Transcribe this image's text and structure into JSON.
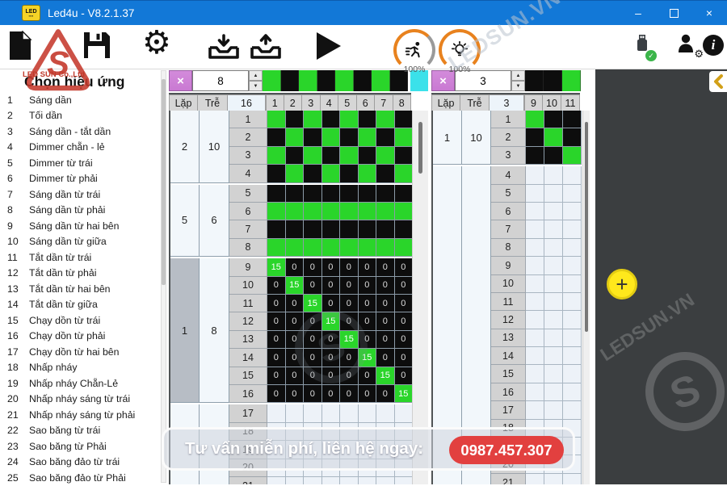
{
  "window": {
    "title": "Led4u - V8.2.1.37",
    "icon_line1": "LED",
    "icon_line2": "▪▪▪▪",
    "minimize": "–",
    "close": "×"
  },
  "toolbar": {
    "speed_label": "100%",
    "brightness_label": "100%"
  },
  "sidebar": {
    "title": "Chọn hiệu ứng",
    "items": [
      {
        "num": "1",
        "label": "Sáng dần"
      },
      {
        "num": "2",
        "label": "Tối dần"
      },
      {
        "num": "3",
        "label": "Sáng dần - tắt dần"
      },
      {
        "num": "4",
        "label": "Dimmer chẵn - lẻ"
      },
      {
        "num": "5",
        "label": "Dimmer từ trái"
      },
      {
        "num": "6",
        "label": "Dimmer từ phải"
      },
      {
        "num": "7",
        "label": "Sáng dần từ trái"
      },
      {
        "num": "8",
        "label": "Sáng dần từ phải"
      },
      {
        "num": "9",
        "label": "Sáng dần từ hai bên"
      },
      {
        "num": "10",
        "label": "Sáng dần từ giữa"
      },
      {
        "num": "11",
        "label": "Tắt dần từ trái"
      },
      {
        "num": "12",
        "label": "Tắt dần từ phải"
      },
      {
        "num": "13",
        "label": "Tắt dần từ hai bên"
      },
      {
        "num": "14",
        "label": "Tắt dần từ giữa"
      },
      {
        "num": "15",
        "label": "Chạy dồn từ trái"
      },
      {
        "num": "16",
        "label": "Chạy dồn từ phải"
      },
      {
        "num": "17",
        "label": "Chạy dồn từ hai bên"
      },
      {
        "num": "18",
        "label": "Nhấp nháy"
      },
      {
        "num": "19",
        "label": "Nhấp nháy Chẵn-Lẻ"
      },
      {
        "num": "20",
        "label": "Nhấp nháy sáng từ trái"
      },
      {
        "num": "21",
        "label": "Nhấp nháy sáng từ phải"
      },
      {
        "num": "22",
        "label": "Sao băng từ trái"
      },
      {
        "num": "23",
        "label": "Sao băng từ Phải"
      },
      {
        "num": "24",
        "label": "Sao băng đảo từ trái"
      },
      {
        "num": "25",
        "label": "Sao băng đảo từ Phải"
      }
    ]
  },
  "grids": {
    "left": {
      "clear": "×",
      "value": "8",
      "headers": {
        "lap": "Lặp",
        "tre": "Trễ",
        "count": "16"
      },
      "columns": [
        "1",
        "2",
        "3",
        "4",
        "5",
        "6",
        "7",
        "8"
      ],
      "top_colors": [
        "g",
        "k",
        "g",
        "k",
        "g",
        "k",
        "g",
        "k"
      ],
      "has_corner": true,
      "sections": [
        {
          "lap": "2",
          "tre": "10",
          "rows": [
            [
              "g",
              "k",
              "g",
              "k",
              "g",
              "k",
              "g",
              "k"
            ],
            [
              "k",
              "g",
              "k",
              "g",
              "k",
              "g",
              "k",
              "g"
            ],
            [
              "g",
              "k",
              "g",
              "k",
              "g",
              "k",
              "g",
              "k"
            ],
            [
              "k",
              "g",
              "k",
              "g",
              "k",
              "g",
              "k",
              "g"
            ]
          ]
        },
        {
          "lap": "5",
          "tre": "6",
          "rows": [
            [
              "k",
              "k",
              "k",
              "k",
              "k",
              "k",
              "k",
              "k"
            ],
            [
              "g",
              "g",
              "g",
              "g",
              "g",
              "g",
              "g",
              "g"
            ],
            [
              "k",
              "k",
              "k",
              "k",
              "k",
              "k",
              "k",
              "k"
            ],
            [
              "g",
              "g",
              "g",
              "g",
              "g",
              "g",
              "g",
              "g"
            ]
          ]
        },
        {
          "lap": "1",
          "tre": "8",
          "selected": true,
          "rows": [
            [
              "g:15",
              "k:0",
              "k:0",
              "k:0",
              "k:0",
              "k:0",
              "k:0",
              "k:0"
            ],
            [
              "k:0",
              "g:15",
              "k:0",
              "k:0",
              "k:0",
              "k:0",
              "k:0",
              "k:0"
            ],
            [
              "k:0",
              "k:0",
              "g:15",
              "k:0",
              "k:0",
              "k:0",
              "k:0",
              "k:0"
            ],
            [
              "k:0",
              "k:0",
              "k:0",
              "g:15",
              "k:0",
              "k:0",
              "k:0",
              "k:0"
            ],
            [
              "k:0",
              "k:0",
              "k:0",
              "k:0",
              "g:15",
              "k:0",
              "k:0",
              "k:0"
            ],
            [
              "k:0",
              "k:0",
              "k:0",
              "k:0",
              "k:0",
              "g:15",
              "k:0",
              "k:0"
            ],
            [
              "k:0",
              "k:0",
              "k:0",
              "k:0",
              "k:0",
              "k:0",
              "g:15",
              "k:0"
            ],
            [
              "k:0",
              "k:0",
              "k:0",
              "k:0",
              "k:0",
              "k:0",
              "k:0",
              "g:15"
            ]
          ]
        },
        {
          "lap": "",
          "tre": "",
          "rows": [
            [
              "",
              "",
              "",
              "",
              "",
              "",
              "",
              ""
            ],
            [
              "",
              "",
              "",
              "",
              "",
              "",
              "",
              ""
            ],
            [
              "",
              "",
              "",
              "",
              "",
              "",
              "",
              ""
            ],
            [
              "",
              "",
              "",
              "",
              "",
              "",
              "",
              ""
            ],
            [
              "",
              "",
              "",
              "",
              "",
              "",
              "",
              ""
            ]
          ]
        }
      ]
    },
    "right": {
      "clear": "×",
      "value": "3",
      "headers": {
        "lap": "Lặp",
        "tre": "Trễ",
        "count": "3"
      },
      "columns": [
        "9",
        "10",
        "11"
      ],
      "top_colors": [
        "k",
        "k",
        "g"
      ],
      "has_corner": false,
      "sections": [
        {
          "lap": "1",
          "tre": "10",
          "rows": [
            [
              "g",
              "k",
              "k"
            ],
            [
              "k",
              "g",
              "k"
            ],
            [
              "k",
              "k",
              "g"
            ]
          ]
        },
        {
          "lap": "",
          "tre": "",
          "rows": [
            [
              "",
              "",
              ""
            ],
            [
              "",
              "",
              ""
            ],
            [
              "",
              "",
              ""
            ],
            [
              "",
              "",
              ""
            ],
            [
              "",
              "",
              ""
            ],
            [
              "",
              "",
              ""
            ],
            [
              "",
              "",
              ""
            ],
            [
              "",
              "",
              ""
            ],
            [
              "",
              "",
              ""
            ],
            [
              "",
              "",
              ""
            ],
            [
              "",
              "",
              ""
            ],
            [
              "",
              "",
              ""
            ],
            [
              "",
              "",
              ""
            ],
            [
              "",
              "",
              ""
            ],
            [
              "",
              "",
              ""
            ],
            [
              "",
              "",
              ""
            ],
            [
              "",
              "",
              ""
            ],
            [
              "",
              "",
              ""
            ]
          ]
        }
      ]
    }
  },
  "side_panel": {
    "add": "+"
  },
  "banner": {
    "text": "Tư vấn miễn phí, liên hệ ngay:",
    "phone": "0987.457.307"
  },
  "watermarks": {
    "brand": "LEDSUN.VN",
    "company": "LED SUN Co.,Ltd",
    "logo_letter": "S"
  },
  "colors": {
    "green": "#2AD52A",
    "black": "#0D0D0D",
    "cyan": "#3BE1EA",
    "violet": "#C979D2",
    "orange": "#E8821E",
    "red": "#E2403F",
    "yellow": "#FFE81C",
    "titlebar": "#1278D7"
  }
}
